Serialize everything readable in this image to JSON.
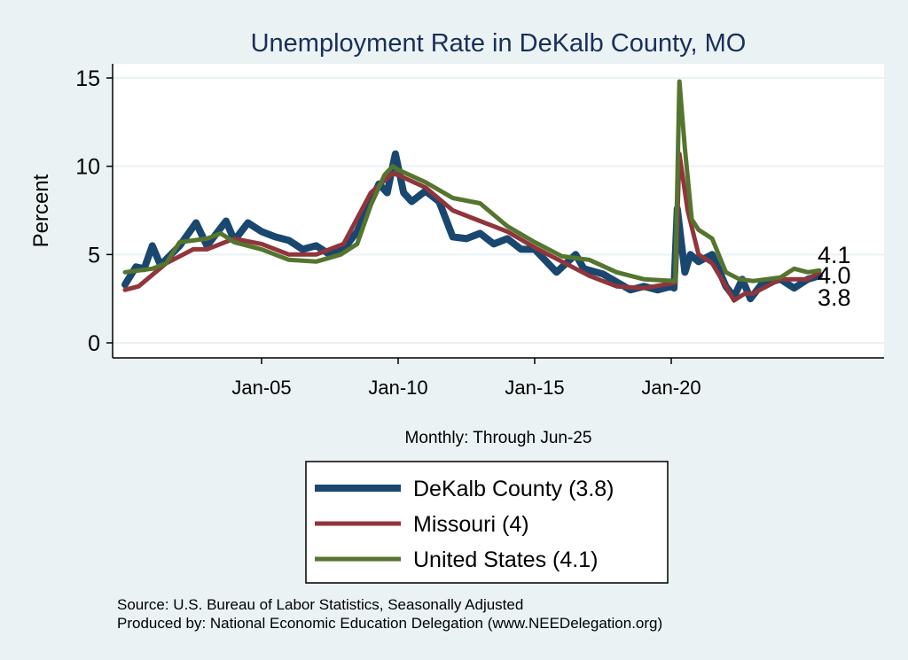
{
  "chart_data": {
    "type": "line",
    "title": "Unemployment Rate in DeKalb  County, MO",
    "ylabel": "Percent",
    "xlabel": "Monthly: Through Jun-25",
    "ylim": [
      0,
      15
    ],
    "yticks": [
      0,
      5,
      10,
      15
    ],
    "xticks": [
      {
        "label": "Jan-05",
        "x": 2005
      },
      {
        "label": "Jan-10",
        "x": 2010
      },
      {
        "label": "Jan-15",
        "x": 2015
      },
      {
        "label": "Jan-20",
        "x": 2020
      }
    ],
    "xlim": [
      1999.55,
      2027.8
    ],
    "grid": true,
    "legend_position": "bottom",
    "series": [
      {
        "name": "DeKalb  County (3.8)",
        "color": "#1a476f",
        "end_label": "3.8",
        "x": [
          2000,
          2000.4,
          2000.7,
          2001,
          2001.3,
          2002,
          2002.6,
          2003,
          2003.7,
          2004,
          2004.5,
          2005,
          2005.5,
          2006,
          2006.5,
          2007,
          2007.5,
          2008,
          2008.5,
          2009,
          2009.3,
          2009.6,
          2009.8,
          2009.9,
          2010.2,
          2010.5,
          2011,
          2011.5,
          2012,
          2012.5,
          2013,
          2013.5,
          2014,
          2014.5,
          2015,
          2015.8,
          2016.5,
          2016.8,
          2017.5,
          2018.5,
          2019,
          2019.5,
          2020,
          2020.1,
          2020.22,
          2020.5,
          2020.7,
          2021,
          2021.5,
          2022,
          2022.3,
          2022.6,
          2022.9,
          2023.3,
          2024,
          2024.5,
          2025,
          2025.42
        ],
        "y": [
          3.3,
          4.3,
          4.2,
          5.5,
          4.4,
          5.5,
          6.8,
          5.5,
          6.9,
          5.8,
          6.8,
          6.3,
          6.0,
          5.8,
          5.3,
          5.5,
          5.0,
          5.3,
          6.3,
          8.0,
          9.0,
          8.5,
          10.0,
          10.7,
          8.5,
          8.0,
          8.6,
          8.0,
          6.0,
          5.9,
          6.2,
          5.6,
          5.9,
          5.3,
          5.3,
          4.0,
          5.0,
          4.2,
          3.9,
          3.0,
          3.2,
          3.0,
          3.2,
          3.1,
          7.6,
          4.0,
          5.0,
          4.6,
          5.0,
          3.2,
          2.6,
          3.6,
          2.5,
          3.3,
          3.6,
          3.1,
          3.6,
          3.8
        ]
      },
      {
        "name": "Missouri (4)",
        "color": "#90353b",
        "end_label": "4.0",
        "x": [
          2000,
          2000.5,
          2001.5,
          2002.5,
          2003,
          2004,
          2005,
          2006,
          2007,
          2008,
          2009,
          2009.8,
          2010,
          2011,
          2012,
          2013,
          2014,
          2015,
          2016,
          2017,
          2018,
          2019,
          2020.15,
          2020.3,
          2020.6,
          2021,
          2021.5,
          2022,
          2022.3,
          2022.7,
          2023,
          2024,
          2025,
          2025.42
        ],
        "y": [
          3.0,
          3.2,
          4.5,
          5.3,
          5.3,
          5.9,
          5.6,
          5.0,
          5.0,
          5.6,
          8.5,
          9.6,
          9.5,
          8.8,
          7.5,
          6.9,
          6.3,
          5.4,
          4.6,
          3.8,
          3.2,
          3.1,
          3.4,
          10.7,
          7.5,
          5.0,
          4.5,
          3.2,
          2.4,
          2.8,
          2.8,
          3.6,
          3.6,
          4.0
        ]
      },
      {
        "name": "United States (4.1)",
        "color": "#55752f",
        "end_label": "4.1",
        "x": [
          2000,
          2001,
          2001.5,
          2002,
          2003,
          2003.5,
          2004,
          2005,
          2006,
          2007,
          2007.9,
          2008.5,
          2009,
          2009.5,
          2009.8,
          2010,
          2011,
          2012,
          2013,
          2014,
          2015,
          2016,
          2017,
          2018,
          2019,
          2020.15,
          2020.3,
          2020.5,
          2020.75,
          2021,
          2021.5,
          2022,
          2022.5,
          2023,
          2024,
          2024.5,
          2025,
          2025.42
        ],
        "y": [
          4.0,
          4.2,
          4.5,
          5.7,
          5.9,
          6.2,
          5.7,
          5.3,
          4.7,
          4.6,
          5.0,
          5.6,
          7.8,
          9.5,
          10.0,
          9.8,
          9.1,
          8.2,
          7.9,
          6.6,
          5.7,
          4.9,
          4.7,
          4.0,
          3.6,
          3.5,
          14.8,
          11.0,
          7.0,
          6.4,
          5.9,
          4.0,
          3.6,
          3.5,
          3.7,
          4.2,
          4.0,
          4.1
        ]
      }
    ]
  },
  "footer": {
    "source": "Source: U.S. Bureau of Labor Statistics, Seasonally Adjusted",
    "produced": "Produced by: National Economic Education Delegation (www.NEEDelegation.org)"
  }
}
